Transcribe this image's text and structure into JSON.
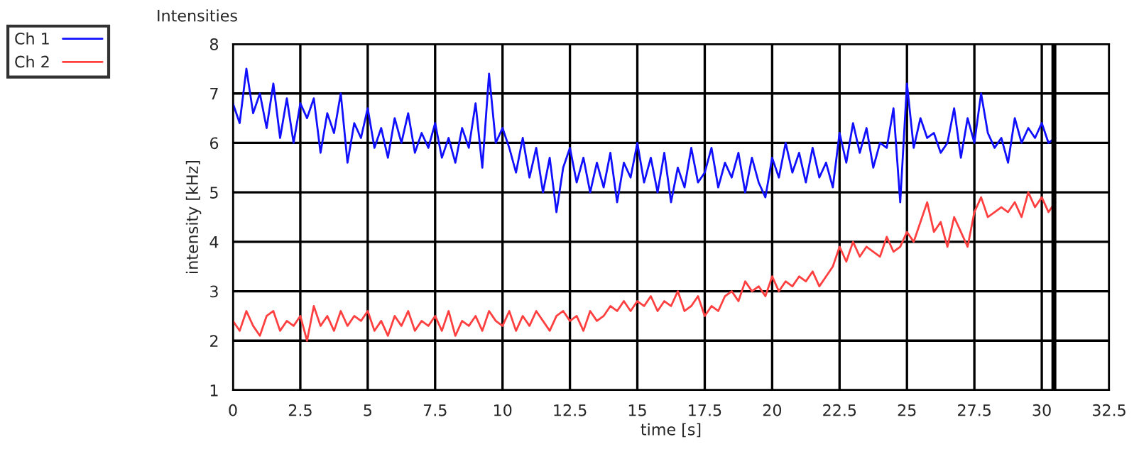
{
  "chart_data": {
    "type": "line",
    "title": "Intensities",
    "xlabel": "time [s]",
    "ylabel": "intensity [kHz]",
    "x": [
      0,
      0.25,
      0.5,
      0.75,
      1,
      1.25,
      1.5,
      1.75,
      2,
      2.25,
      2.5,
      2.75,
      3,
      3.25,
      3.5,
      3.75,
      4,
      4.25,
      4.5,
      4.75,
      5,
      5.25,
      5.5,
      5.75,
      6,
      6.25,
      6.5,
      6.75,
      7,
      7.25,
      7.5,
      7.75,
      8,
      8.25,
      8.5,
      8.75,
      9,
      9.25,
      9.5,
      9.75,
      10,
      10.25,
      10.5,
      10.75,
      11,
      11.25,
      11.5,
      11.75,
      12,
      12.25,
      12.5,
      12.75,
      13,
      13.25,
      13.5,
      13.75,
      14,
      14.25,
      14.5,
      14.75,
      15,
      15.25,
      15.5,
      15.75,
      16,
      16.25,
      16.5,
      16.75,
      17,
      17.25,
      17.5,
      17.75,
      18,
      18.25,
      18.5,
      18.75,
      19,
      19.25,
      19.5,
      19.75,
      20,
      20.25,
      20.5,
      20.75,
      21,
      21.25,
      21.5,
      21.75,
      22,
      22.25,
      22.5,
      22.75,
      23,
      23.25,
      23.5,
      23.75,
      24,
      24.25,
      24.5,
      24.75,
      25,
      25.25,
      25.5,
      25.75,
      26,
      26.25,
      26.5,
      26.75,
      27,
      27.25,
      27.5,
      27.75,
      28,
      28.25,
      28.5,
      28.75,
      29,
      29.25,
      29.5,
      29.75,
      30,
      30.25,
      30.5
    ],
    "series": [
      {
        "name": "Ch 1",
        "color": "#1010ff",
        "values": [
          6.8,
          6.4,
          7.5,
          6.6,
          7.0,
          6.3,
          7.2,
          6.1,
          6.9,
          6.0,
          6.8,
          6.5,
          6.9,
          5.8,
          6.6,
          6.2,
          7.0,
          5.6,
          6.4,
          6.1,
          6.7,
          5.9,
          6.3,
          5.7,
          6.5,
          6.0,
          6.6,
          5.8,
          6.2,
          5.9,
          6.4,
          5.7,
          6.1,
          5.6,
          6.3,
          5.9,
          6.8,
          5.5,
          7.4,
          6.0,
          6.3,
          5.9,
          5.4,
          6.1,
          5.3,
          5.9,
          5.0,
          5.7,
          4.6,
          5.5,
          5.9,
          5.2,
          5.7,
          5.0,
          5.6,
          5.1,
          5.8,
          4.8,
          5.6,
          5.3,
          6.0,
          5.2,
          5.7,
          5.0,
          5.8,
          4.8,
          5.5,
          5.1,
          5.9,
          5.2,
          5.4,
          5.9,
          5.1,
          5.6,
          5.3,
          5.8,
          5.0,
          5.7,
          5.2,
          4.9,
          5.7,
          5.3,
          6.0,
          5.4,
          5.8,
          5.2,
          5.9,
          5.3,
          5.6,
          5.1,
          6.2,
          5.6,
          6.4,
          5.8,
          6.3,
          5.5,
          6.0,
          5.9,
          6.7,
          4.8,
          7.2,
          5.9,
          6.5,
          6.1,
          6.2,
          5.8,
          6.0,
          6.7,
          5.7,
          6.5,
          6.0,
          7.0,
          6.2,
          5.9,
          6.1,
          5.6,
          6.5,
          6.0,
          6.3,
          6.1,
          6.4,
          6.0,
          6.1
        ]
      },
      {
        "name": "Ch 2",
        "color": "#ff4040",
        "values": [
          2.4,
          2.2,
          2.6,
          2.3,
          2.1,
          2.5,
          2.6,
          2.2,
          2.4,
          2.3,
          2.5,
          2.0,
          2.7,
          2.3,
          2.5,
          2.2,
          2.6,
          2.3,
          2.5,
          2.4,
          2.6,
          2.2,
          2.4,
          2.1,
          2.5,
          2.3,
          2.6,
          2.2,
          2.4,
          2.3,
          2.5,
          2.2,
          2.6,
          2.1,
          2.4,
          2.3,
          2.5,
          2.2,
          2.6,
          2.4,
          2.3,
          2.6,
          2.2,
          2.5,
          2.3,
          2.6,
          2.4,
          2.2,
          2.5,
          2.6,
          2.4,
          2.5,
          2.2,
          2.6,
          2.4,
          2.5,
          2.7,
          2.6,
          2.8,
          2.6,
          2.8,
          2.7,
          2.9,
          2.6,
          2.8,
          2.7,
          3.0,
          2.6,
          2.7,
          2.9,
          2.5,
          2.7,
          2.6,
          2.9,
          3.0,
          2.8,
          3.2,
          3.0,
          3.1,
          2.9,
          3.3,
          3.0,
          3.2,
          3.1,
          3.3,
          3.2,
          3.4,
          3.1,
          3.3,
          3.5,
          3.9,
          3.6,
          4.0,
          3.7,
          3.9,
          3.8,
          3.7,
          4.1,
          3.8,
          3.9,
          4.2,
          4.0,
          4.4,
          4.8,
          4.2,
          4.4,
          3.9,
          4.5,
          4.2,
          3.9,
          4.6,
          4.9,
          4.5,
          4.6,
          4.7,
          4.6,
          4.8,
          4.5,
          5.0,
          4.7,
          4.9,
          4.6,
          4.8
        ]
      }
    ],
    "xlim": [
      0,
      32.5
    ],
    "xticks": [
      0,
      2.5,
      5,
      7.5,
      10,
      12.5,
      15,
      17.5,
      20,
      22.5,
      25,
      27.5,
      30,
      32.5
    ],
    "ylim": [
      1,
      8
    ],
    "yticks": [
      1,
      2,
      3,
      4,
      5,
      6,
      7,
      8
    ],
    "ref_lines": [
      {
        "axis": "x",
        "value": 30.45,
        "color": "#000000"
      }
    ],
    "grid": true,
    "legend": "top left",
    "marker": "none",
    "line_style": "solid"
  }
}
